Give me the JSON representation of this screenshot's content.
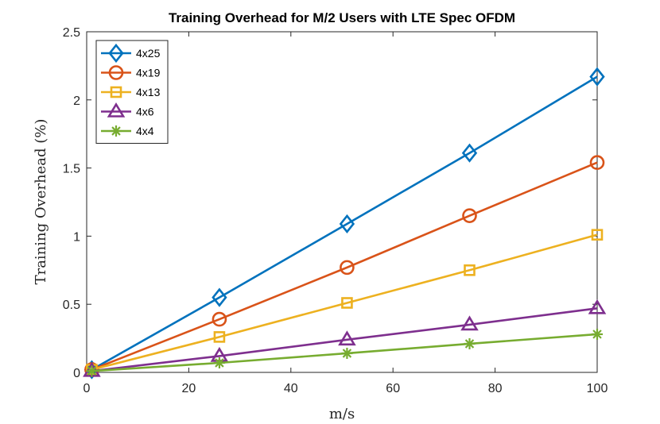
{
  "chart_data": {
    "type": "line",
    "title": "Training Overhead for M/2 Users with LTE Spec OFDM",
    "xlabel": "m/s",
    "ylabel": "Training Overhead (%)",
    "xlim": [
      0,
      100
    ],
    "ylim": [
      0,
      2.5
    ],
    "xticks": [
      0,
      20,
      40,
      60,
      80,
      100
    ],
    "yticks": [
      0,
      0.5,
      1,
      1.5,
      2,
      2.5
    ],
    "xtick_labels": [
      "0",
      "20",
      "40",
      "60",
      "80",
      "100"
    ],
    "ytick_labels": [
      "0",
      "0.5",
      "1",
      "1.5",
      "2",
      "2.5"
    ],
    "grid": false,
    "legend_position": "top-left",
    "x": [
      1,
      26,
      51,
      75,
      100
    ],
    "series": [
      {
        "name": "4x25",
        "color": "#0072BD",
        "marker": "diamond",
        "values": [
          0.02,
          0.55,
          1.09,
          1.61,
          2.17
        ]
      },
      {
        "name": "4x19",
        "color": "#D95319",
        "marker": "circle",
        "values": [
          0.02,
          0.39,
          0.77,
          1.15,
          1.54
        ]
      },
      {
        "name": "4x13",
        "color": "#EDB120",
        "marker": "square",
        "values": [
          0.02,
          0.26,
          0.51,
          0.75,
          1.01
        ]
      },
      {
        "name": "4x6",
        "color": "#7E2F8E",
        "marker": "triangle",
        "values": [
          0.01,
          0.12,
          0.24,
          0.35,
          0.47
        ]
      },
      {
        "name": "4x4",
        "color": "#77AC30",
        "marker": "asterisk",
        "values": [
          0.01,
          0.07,
          0.14,
          0.21,
          0.28
        ]
      }
    ]
  }
}
